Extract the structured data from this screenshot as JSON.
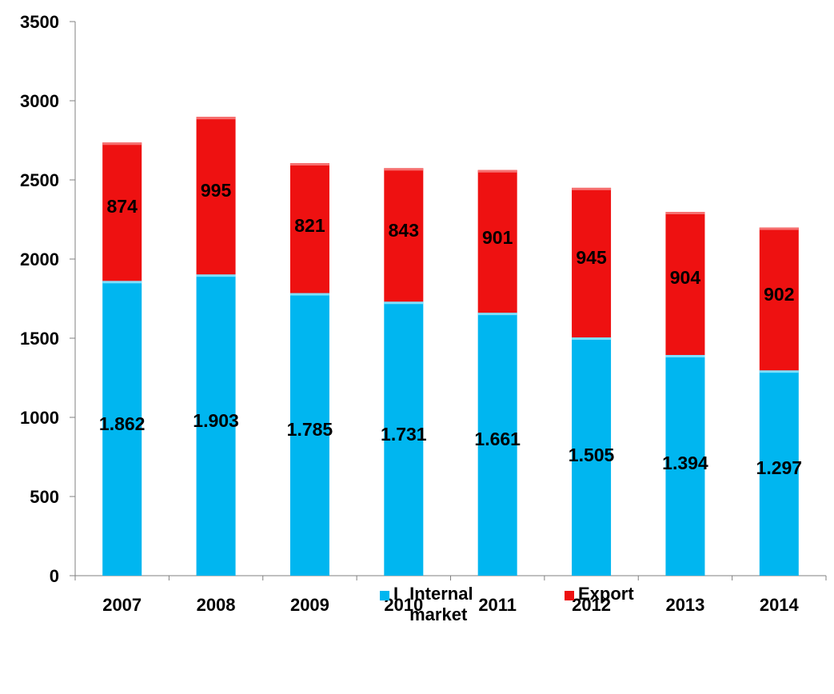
{
  "chart_data": {
    "type": "bar",
    "stacked": true,
    "categories": [
      "2007",
      "2008",
      "2009",
      "2010",
      "2011",
      "2012",
      "2013",
      "2014"
    ],
    "series": [
      {
        "name": "Internal market",
        "color": "#00B6F0",
        "values": [
          1862,
          1903,
          1785,
          1731,
          1661,
          1505,
          1394,
          1297
        ],
        "labels": [
          "1.862",
          "1.903",
          "1.785",
          "1.731",
          "1.661",
          "1.505",
          "1.394",
          "1.297"
        ]
      },
      {
        "name": "Export",
        "color": "#EE1111",
        "values": [
          874,
          995,
          821,
          843,
          901,
          945,
          904,
          902
        ],
        "labels": [
          "874",
          "995",
          "821",
          "843",
          "901",
          "945",
          "904",
          "902"
        ]
      }
    ],
    "yticks": [
      "0",
      "500",
      "1000",
      "1500",
      "2000",
      "2500",
      "3000",
      "3500"
    ],
    "ylim": [
      0,
      3500
    ],
    "xlabel": "",
    "ylabel": "",
    "title": "",
    "grid": false,
    "legend_position": "bottom"
  },
  "legend": {
    "internal_label": "Internal market",
    "internal_prefix": "I",
    "export_label": "Export"
  }
}
